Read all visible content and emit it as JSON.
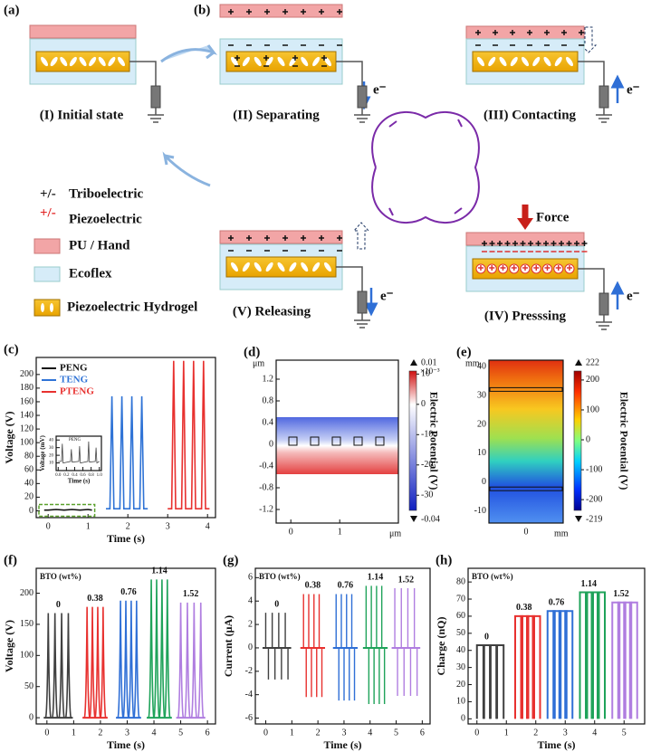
{
  "figure": {
    "panel_labels": [
      "(a)",
      "(b)"
    ],
    "states": [
      "(I) Initial state",
      "(II) Separating",
      "(III) Contacting",
      "(IV) Presssing",
      "(V) Releasing"
    ],
    "electron": "e⁻",
    "force": "Force",
    "legend": {
      "triboelectric_symbol": "+/-",
      "triboelectric": "Triboelectric",
      "piezoelectric_symbol": "+/-",
      "piezoelectric": "Piezoelectric",
      "layers": [
        "PU / Hand",
        "Ecoflex",
        "Piezoelectric Hydrogel"
      ]
    }
  },
  "chart_data": [
    {
      "type": "line",
      "panel": "(c)",
      "xlabel": "Time (s)",
      "ylabel": "Voltage (V)",
      "xlim": [
        -0.3,
        4.2
      ],
      "ylim": [
        -10,
        225
      ],
      "xticks": [
        0,
        1,
        2,
        3,
        4
      ],
      "yticks": [
        0,
        20,
        40,
        60,
        80,
        100,
        120,
        140,
        160,
        180,
        200
      ],
      "legend": "upper-left",
      "series": [
        {
          "name": "PENG",
          "color": "#111111",
          "x": [
            -0.1,
            0,
            0.2,
            0.4,
            0.6,
            0.8,
            1.0,
            1.1
          ],
          "values": [
            1,
            1,
            2,
            1,
            2,
            1,
            2,
            1
          ]
        },
        {
          "name": "TENG",
          "color": "#2f73d6",
          "x": [
            1.45,
            1.55,
            1.6,
            1.65,
            1.8,
            1.85,
            1.9,
            2.05,
            2.1,
            2.15,
            2.3,
            2.35,
            2.4,
            2.5
          ],
          "values": [
            3,
            3,
            168,
            3,
            3,
            168,
            3,
            3,
            168,
            3,
            3,
            168,
            3,
            3
          ]
        },
        {
          "name": "PTENG",
          "color": "#e8312f",
          "x": [
            3.0,
            3.1,
            3.15,
            3.2,
            3.35,
            3.4,
            3.45,
            3.6,
            3.65,
            3.7,
            3.85,
            3.9,
            3.95,
            4.05
          ],
          "values": [
            3,
            3,
            220,
            3,
            3,
            220,
            3,
            3,
            220,
            3,
            3,
            220,
            3,
            3
          ]
        }
      ],
      "inset": {
        "type": "line",
        "xlabel": "Time (s)",
        "ylabel": "Voltage (mV)",
        "xlim": [
          -0.05,
          1.05
        ],
        "ylim": [
          0,
          45
        ],
        "xticks": [
          {
            "value": 0,
            "label": "0.0"
          },
          0.2,
          0.4,
          0.6,
          0.8,
          {
            "value": 1,
            "label": "1.0"
          }
        ],
        "yticks": [
          10,
          20,
          30,
          40
        ],
        "series": [
          {
            "name": "PENG",
            "color": "#444444",
            "x": [
              0,
              0.08,
              0.1,
              0.12,
              0.3,
              0.32,
              0.34,
              0.5,
              0.52,
              0.54,
              0.72,
              0.74,
              0.76,
              0.9,
              0.92,
              0.94,
              1.0
            ],
            "values": [
              12,
              12,
              35,
              10,
              12,
              28,
              11,
              12,
              32,
              10,
              12,
              38,
              11,
              12,
              30,
              10,
              12
            ]
          }
        ]
      }
    },
    {
      "type": "field",
      "panel": "(d)",
      "xunit": "μm",
      "yunit": "μm",
      "xlim": [
        -0.3,
        2.2
      ],
      "ylim": [
        -1.45,
        1.55
      ],
      "xticks": [
        0,
        1
      ],
      "yticks": [
        1.2,
        0.8,
        0.4,
        0,
        -0.4,
        -0.8,
        -1.2
      ],
      "colorbar": {
        "label": "Electric Potential (V)",
        "max": 0.01,
        "scale": "×10⁻³",
        "min": -0.04,
        "clim": [
          -35,
          11
        ],
        "ticks": [
          10,
          0,
          -10,
          -20,
          -30
        ]
      }
    },
    {
      "type": "field",
      "panel": "(e)",
      "xunit": "mm",
      "yunit": "mm",
      "xlim": [
        -10,
        10
      ],
      "ylim": [
        -14.1,
        42.2
      ],
      "xticks": [
        0
      ],
      "yticks": [
        40,
        30,
        20,
        10,
        0,
        -10
      ],
      "colorbar": {
        "label": "Electric Potential (V)",
        "max": 222,
        "min": -219,
        "clim": [
          -236,
          230
        ],
        "ticks": [
          200,
          100,
          0,
          -100,
          -200
        ]
      }
    },
    {
      "type": "spike",
      "panel": "(f)",
      "annotation": "BTO (wt%)",
      "xlabel": "Time (s)",
      "ylabel": "Voltage (V)",
      "xlim": [
        -0.4,
        6.3
      ],
      "ylim": [
        -10,
        240
      ],
      "xticks": [
        0,
        1,
        2,
        3,
        4,
        5,
        6
      ],
      "yticks": [
        0,
        50,
        100,
        150,
        200
      ],
      "series": [
        {
          "name": "0",
          "color": "#404040",
          "x": [
            0.05,
            0.3,
            0.55,
            0.8
          ],
          "values": [
            168,
            168,
            168,
            168
          ]
        },
        {
          "name": "0.38",
          "color": "#e8312f",
          "x": [
            1.5,
            1.7,
            1.9,
            2.1
          ],
          "values": [
            178,
            178,
            178,
            178
          ]
        },
        {
          "name": "0.76",
          "color": "#2f6fd6",
          "x": [
            2.75,
            2.95,
            3.15,
            3.35
          ],
          "values": [
            188,
            188,
            188,
            188
          ]
        },
        {
          "name": "1.14",
          "color": "#1fa35a",
          "x": [
            3.9,
            4.1,
            4.3,
            4.5
          ],
          "values": [
            222,
            222,
            222,
            222
          ]
        },
        {
          "name": "1.52",
          "color": "#b07ee0",
          "x": [
            5.0,
            5.25,
            5.5,
            5.75
          ],
          "values": [
            185,
            185,
            185,
            185
          ]
        }
      ]
    },
    {
      "type": "spike",
      "panel": "(g)",
      "annotation": "BTO (wt%)",
      "xlabel": "Time (s)",
      "ylabel": "Current (μA)",
      "xlim": [
        -0.4,
        6.3
      ],
      "ylim": [
        -6.5,
        6.8
      ],
      "xticks": [
        0,
        1,
        2,
        3,
        4,
        5,
        6
      ],
      "yticks": [
        -6,
        -4,
        -2,
        0,
        2,
        4,
        6
      ],
      "series": [
        {
          "name": "0",
          "color": "#404040",
          "x": [
            0.05,
            0.3,
            0.55,
            0.8
          ],
          "values": [
            3,
            3,
            3,
            3
          ],
          "min_values": [
            -2.7,
            -2.7,
            -2.7,
            -2.7
          ]
        },
        {
          "name": "0.38",
          "color": "#e8312f",
          "x": [
            1.5,
            1.7,
            1.9,
            2.1
          ],
          "values": [
            4.6,
            4.6,
            4.6,
            4.6
          ],
          "min_values": [
            -4.2,
            -4.2,
            -4.2,
            -4.2
          ]
        },
        {
          "name": "0.76",
          "color": "#2f6fd6",
          "x": [
            2.75,
            2.95,
            3.15,
            3.35
          ],
          "values": [
            4.6,
            4.6,
            4.6,
            4.6
          ],
          "min_values": [
            -4.5,
            -4.5,
            -4.5,
            -4.5
          ]
        },
        {
          "name": "1.14",
          "color": "#1fa35a",
          "x": [
            3.9,
            4.1,
            4.3,
            4.5
          ],
          "values": [
            5.3,
            5.3,
            5.3,
            5.3
          ],
          "min_values": [
            -4.8,
            -4.8,
            -4.8,
            -4.8
          ]
        },
        {
          "name": "1.52",
          "color": "#b07ee0",
          "x": [
            5.0,
            5.25,
            5.5,
            5.75
          ],
          "values": [
            5.1,
            5.1,
            5.1,
            5.1
          ],
          "min_values": [
            -4.1,
            -4.1,
            -4.1,
            -4.1
          ]
        }
      ]
    },
    {
      "type": "pulse",
      "panel": "(h)",
      "annotation": "BTO (wt%)",
      "xlabel": "Time (s)",
      "ylabel": "Charge (nQ)",
      "xlim": [
        -0.3,
        5.7
      ],
      "ylim": [
        -3,
        88
      ],
      "xticks": [
        0,
        1,
        2,
        3,
        4,
        5
      ],
      "yticks": [
        0,
        10,
        20,
        30,
        40,
        50,
        60,
        70,
        80
      ],
      "series": [
        {
          "name": "0",
          "color": "#404040",
          "x": [
            0.0,
            0.22,
            0.44,
            0.66
          ],
          "values": [
            43,
            43,
            43,
            43
          ]
        },
        {
          "name": "0.38",
          "color": "#e8312f",
          "x": [
            1.3,
            1.5,
            1.7,
            1.9
          ],
          "values": [
            60,
            60,
            60,
            60
          ]
        },
        {
          "name": "0.76",
          "color": "#2f6fd6",
          "x": [
            2.4,
            2.6,
            2.8,
            3.0
          ],
          "values": [
            63,
            63,
            63,
            63
          ]
        },
        {
          "name": "1.14",
          "color": "#1fa35a",
          "x": [
            3.5,
            3.7,
            3.9,
            4.1
          ],
          "values": [
            74,
            74,
            74,
            74
          ]
        },
        {
          "name": "1.52",
          "color": "#b07ee0",
          "x": [
            4.6,
            4.8,
            5.0,
            5.2
          ],
          "values": [
            68,
            68,
            68,
            68
          ]
        }
      ]
    }
  ]
}
